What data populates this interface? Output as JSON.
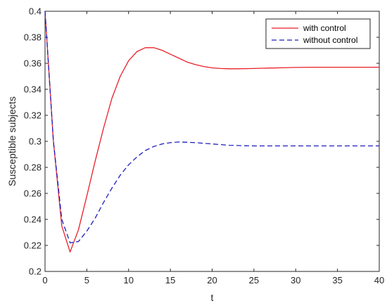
{
  "chart_data": {
    "type": "line",
    "xlabel": "t",
    "ylabel": "Susceptible subjects",
    "xlim": [
      0,
      40
    ],
    "ylim": [
      0.2,
      0.4
    ],
    "x_ticks": [
      0,
      5,
      10,
      15,
      20,
      25,
      30,
      35,
      40
    ],
    "y_ticks": [
      0.2,
      0.22,
      0.24,
      0.26,
      0.28,
      0.3,
      0.32,
      0.34,
      0.36,
      0.38,
      0.4
    ],
    "grid": false,
    "legend_position": "top-right",
    "series": [
      {
        "name": "with control",
        "color": "#e8202a",
        "line_style": "solid",
        "x": [
          0,
          1,
          2,
          3,
          4,
          5,
          6,
          7,
          8,
          9,
          10,
          11,
          12,
          13,
          14,
          15,
          16,
          17,
          18,
          19,
          20,
          21,
          22,
          23,
          24,
          25,
          26,
          28,
          30,
          32,
          35,
          38,
          40
        ],
        "y": [
          0.4,
          0.3,
          0.235,
          0.215,
          0.232,
          0.258,
          0.285,
          0.31,
          0.333,
          0.35,
          0.362,
          0.369,
          0.372,
          0.372,
          0.37,
          0.367,
          0.364,
          0.361,
          0.359,
          0.3575,
          0.3565,
          0.356,
          0.3558,
          0.3558,
          0.3559,
          0.356,
          0.3562,
          0.3565,
          0.3568,
          0.357,
          0.357,
          0.357,
          0.357
        ]
      },
      {
        "name": "without control",
        "color": "#1f1fbf",
        "line_style": "dashed",
        "x": [
          0,
          1,
          2,
          3,
          4,
          5,
          6,
          7,
          8,
          9,
          10,
          11,
          12,
          13,
          14,
          15,
          16,
          17,
          18,
          19,
          20,
          21,
          22,
          23,
          24,
          25,
          26,
          28,
          30,
          32,
          35,
          38,
          40
        ],
        "y": [
          0.4,
          0.3,
          0.24,
          0.222,
          0.223,
          0.231,
          0.241,
          0.253,
          0.264,
          0.274,
          0.282,
          0.288,
          0.293,
          0.296,
          0.298,
          0.299,
          0.2995,
          0.2993,
          0.299,
          0.2985,
          0.298,
          0.2975,
          0.297,
          0.2968,
          0.2966,
          0.2965,
          0.2965,
          0.2965,
          0.2965,
          0.2965,
          0.2965,
          0.2965,
          0.2965
        ]
      }
    ]
  }
}
